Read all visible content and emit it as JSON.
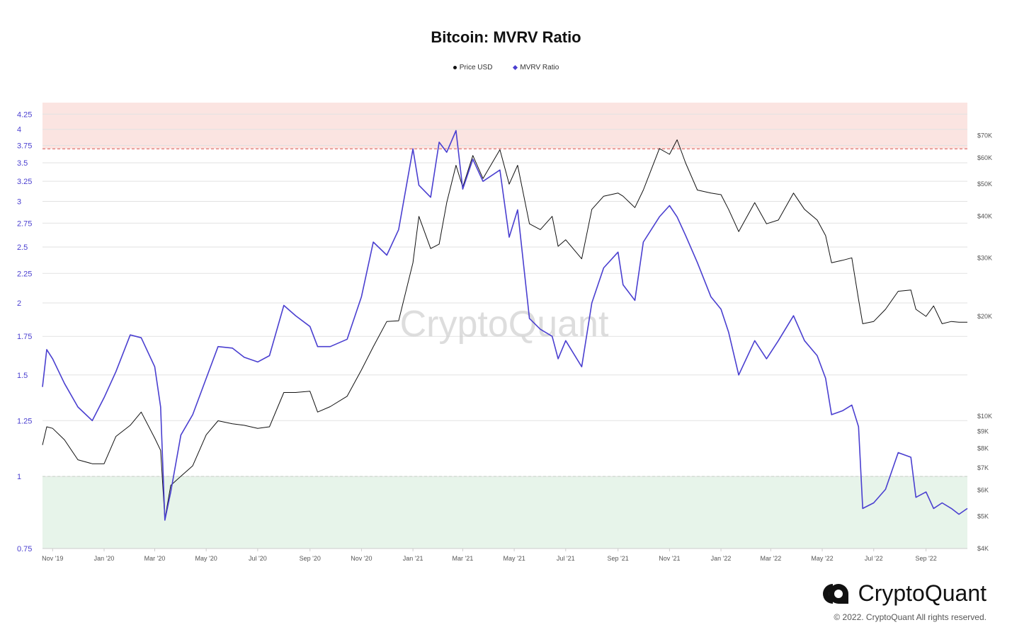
{
  "chart_data": {
    "type": "line",
    "title": "Bitcoin: MVRV Ratio",
    "legend": [
      {
        "name": "Price USD",
        "color": "#111111",
        "marker": "circle"
      },
      {
        "name": "MVRV Ratio",
        "color": "#4a3fd0",
        "marker": "diamond"
      }
    ],
    "legend_position": "top-center",
    "x_ticks": [
      "Nov '19",
      "Jan '20",
      "Mar '20",
      "May '20",
      "Jul '20",
      "Sep '20",
      "Nov '20",
      "Jan '21",
      "Mar '21",
      "May '21",
      "Jul '21",
      "Sep '21",
      "Nov '21",
      "Jan '22",
      "Mar '22",
      "May '22",
      "Jul '22",
      "Sep '22"
    ],
    "x_tick_dates": [
      "2019-11-01",
      "2020-01-01",
      "2020-03-01",
      "2020-05-01",
      "2020-07-01",
      "2020-09-01",
      "2020-11-01",
      "2021-01-01",
      "2021-03-01",
      "2021-05-01",
      "2021-07-01",
      "2021-09-01",
      "2021-11-01",
      "2022-01-01",
      "2022-03-01",
      "2022-05-01",
      "2022-07-01",
      "2022-09-01"
    ],
    "x_range": [
      "2019-10-20",
      "2022-10-20"
    ],
    "left_axis": {
      "label": "MVRV Ratio",
      "ticks": [
        "4.25",
        "4",
        "3.75",
        "3.5",
        "3.25",
        "3",
        "2.75",
        "2.5",
        "2.25",
        "2",
        "1.75",
        "1.5",
        "1.25",
        "1",
        "0.75"
      ],
      "tick_values": [
        4.25,
        4,
        3.75,
        3.5,
        3.25,
        3,
        2.75,
        2.5,
        2.25,
        2,
        1.75,
        1.5,
        1.25,
        1,
        0.75
      ],
      "range": [
        0.75,
        4.45
      ],
      "scale": "log"
    },
    "right_axis": {
      "label": "Price USD",
      "ticks": [
        "$70K",
        "$60K",
        "$50K",
        "$40K",
        "$30K",
        "$20K",
        "$10K",
        "$9K",
        "$8K",
        "$7K",
        "$6K",
        "$5K",
        "$4K"
      ],
      "tick_values": [
        70000,
        60000,
        50000,
        40000,
        30000,
        20000,
        10000,
        9000,
        8000,
        7000,
        6000,
        5000,
        4000
      ],
      "range": [
        4000,
        88000
      ],
      "scale": "log"
    },
    "bands": [
      {
        "name": "overvalued",
        "from": 3.7,
        "to": 4.45,
        "color": "#fbe4e1",
        "line_color": "#d9534f"
      },
      {
        "name": "undervalued",
        "from": 0.75,
        "to": 1.0,
        "color": "#e7f4ea",
        "line_color": "#6aa86f"
      }
    ],
    "grid": true,
    "series": [
      {
        "name": "MVRV Ratio",
        "color": "#4a3fd0",
        "x": [
          "2019-10-20",
          "2019-10-25",
          "2019-11-01",
          "2019-11-15",
          "2019-12-01",
          "2019-12-18",
          "2020-01-01",
          "2020-01-15",
          "2020-02-01",
          "2020-02-14",
          "2020-03-01",
          "2020-03-08",
          "2020-03-13",
          "2020-03-20",
          "2020-04-01",
          "2020-04-15",
          "2020-05-01",
          "2020-05-15",
          "2020-06-01",
          "2020-06-15",
          "2020-07-01",
          "2020-07-15",
          "2020-08-01",
          "2020-08-15",
          "2020-09-01",
          "2020-09-10",
          "2020-09-25",
          "2020-10-15",
          "2020-11-01",
          "2020-11-15",
          "2020-12-01",
          "2020-12-15",
          "2021-01-01",
          "2021-01-08",
          "2021-01-22",
          "2021-02-01",
          "2021-02-10",
          "2021-02-21",
          "2021-03-01",
          "2021-03-13",
          "2021-03-25",
          "2021-04-14",
          "2021-04-25",
          "2021-05-05",
          "2021-05-19",
          "2021-06-01",
          "2021-06-15",
          "2021-06-22",
          "2021-07-01",
          "2021-07-20",
          "2021-08-01",
          "2021-08-15",
          "2021-09-01",
          "2021-09-07",
          "2021-09-21",
          "2021-10-01",
          "2021-10-20",
          "2021-11-01",
          "2021-11-10",
          "2021-11-20",
          "2021-12-04",
          "2021-12-20",
          "2022-01-01",
          "2022-01-10",
          "2022-01-22",
          "2022-02-10",
          "2022-02-24",
          "2022-03-10",
          "2022-03-28",
          "2022-04-10",
          "2022-04-25",
          "2022-05-05",
          "2022-05-12",
          "2022-05-25",
          "2022-06-05",
          "2022-06-13",
          "2022-06-18",
          "2022-07-01",
          "2022-07-15",
          "2022-07-30",
          "2022-08-14",
          "2022-08-20",
          "2022-09-01",
          "2022-09-10",
          "2022-09-20",
          "2022-10-01",
          "2022-10-10",
          "2022-10-20"
        ],
        "values": [
          1.43,
          1.66,
          1.6,
          1.45,
          1.32,
          1.25,
          1.37,
          1.52,
          1.76,
          1.74,
          1.55,
          1.32,
          0.84,
          0.94,
          1.18,
          1.28,
          1.48,
          1.68,
          1.67,
          1.61,
          1.58,
          1.62,
          1.98,
          1.9,
          1.82,
          1.68,
          1.68,
          1.73,
          2.05,
          2.55,
          2.42,
          2.68,
          3.7,
          3.2,
          3.05,
          3.8,
          3.65,
          3.98,
          3.15,
          3.55,
          3.25,
          3.4,
          2.6,
          2.9,
          1.88,
          1.8,
          1.75,
          1.6,
          1.72,
          1.55,
          2.0,
          2.3,
          2.45,
          2.15,
          2.02,
          2.55,
          2.82,
          2.95,
          2.82,
          2.62,
          2.35,
          2.05,
          1.95,
          1.78,
          1.5,
          1.72,
          1.6,
          1.72,
          1.9,
          1.72,
          1.62,
          1.48,
          1.28,
          1.3,
          1.33,
          1.22,
          0.88,
          0.9,
          0.95,
          1.1,
          1.08,
          0.92,
          0.94,
          0.88,
          0.9,
          0.88,
          0.86,
          0.88
        ]
      },
      {
        "name": "Price USD",
        "color": "#111111",
        "x": [
          "2019-10-20",
          "2019-10-25",
          "2019-11-01",
          "2019-11-15",
          "2019-12-01",
          "2019-12-18",
          "2020-01-01",
          "2020-01-15",
          "2020-02-01",
          "2020-02-14",
          "2020-03-01",
          "2020-03-08",
          "2020-03-13",
          "2020-03-20",
          "2020-04-01",
          "2020-04-15",
          "2020-05-01",
          "2020-05-15",
          "2020-06-01",
          "2020-06-15",
          "2020-07-01",
          "2020-07-15",
          "2020-08-01",
          "2020-08-15",
          "2020-09-01",
          "2020-09-10",
          "2020-09-25",
          "2020-10-15",
          "2020-11-01",
          "2020-11-15",
          "2020-12-01",
          "2020-12-15",
          "2021-01-01",
          "2021-01-08",
          "2021-01-22",
          "2021-02-01",
          "2021-02-10",
          "2021-02-21",
          "2021-03-01",
          "2021-03-13",
          "2021-03-25",
          "2021-04-14",
          "2021-04-25",
          "2021-05-05",
          "2021-05-19",
          "2021-06-01",
          "2021-06-15",
          "2021-06-22",
          "2021-07-01",
          "2021-07-20",
          "2021-08-01",
          "2021-08-15",
          "2021-09-01",
          "2021-09-07",
          "2021-09-21",
          "2021-10-01",
          "2021-10-20",
          "2021-11-01",
          "2021-11-10",
          "2021-11-20",
          "2021-12-04",
          "2021-12-20",
          "2022-01-01",
          "2022-01-10",
          "2022-01-22",
          "2022-02-10",
          "2022-02-24",
          "2022-03-10",
          "2022-03-28",
          "2022-04-10",
          "2022-04-25",
          "2022-05-05",
          "2022-05-12",
          "2022-05-25",
          "2022-06-05",
          "2022-06-13",
          "2022-06-18",
          "2022-07-01",
          "2022-07-15",
          "2022-07-30",
          "2022-08-14",
          "2022-08-20",
          "2022-09-01",
          "2022-09-10",
          "2022-09-20",
          "2022-10-01",
          "2022-10-10",
          "2022-10-20"
        ],
        "values": [
          8200,
          9300,
          9200,
          8500,
          7400,
          7200,
          7200,
          8700,
          9400,
          10300,
          8600,
          7900,
          4900,
          6200,
          6600,
          7100,
          8800,
          9700,
          9500,
          9400,
          9200,
          9300,
          11800,
          11800,
          11900,
          10300,
          10700,
          11500,
          13800,
          16200,
          19300,
          19400,
          29000,
          40000,
          32000,
          33000,
          44000,
          57000,
          49000,
          61000,
          52000,
          63500,
          50000,
          57000,
          38000,
          36500,
          40000,
          32500,
          34000,
          29800,
          42000,
          46000,
          47000,
          46000,
          42500,
          48000,
          64000,
          61500,
          68000,
          58000,
          48000,
          47000,
          46500,
          42000,
          36000,
          44000,
          38000,
          39000,
          47000,
          42000,
          39000,
          35000,
          29000,
          29500,
          30000,
          22500,
          19000,
          19300,
          21000,
          23800,
          24000,
          21000,
          20000,
          21500,
          19000,
          19300,
          19200,
          19200
        ]
      }
    ]
  },
  "watermark": "CryptoQuant",
  "brand": {
    "name": "CryptoQuant",
    "icon": "cryptoquant-logo-icon",
    "copyright": "© 2022. CryptoQuant All rights reserved."
  }
}
